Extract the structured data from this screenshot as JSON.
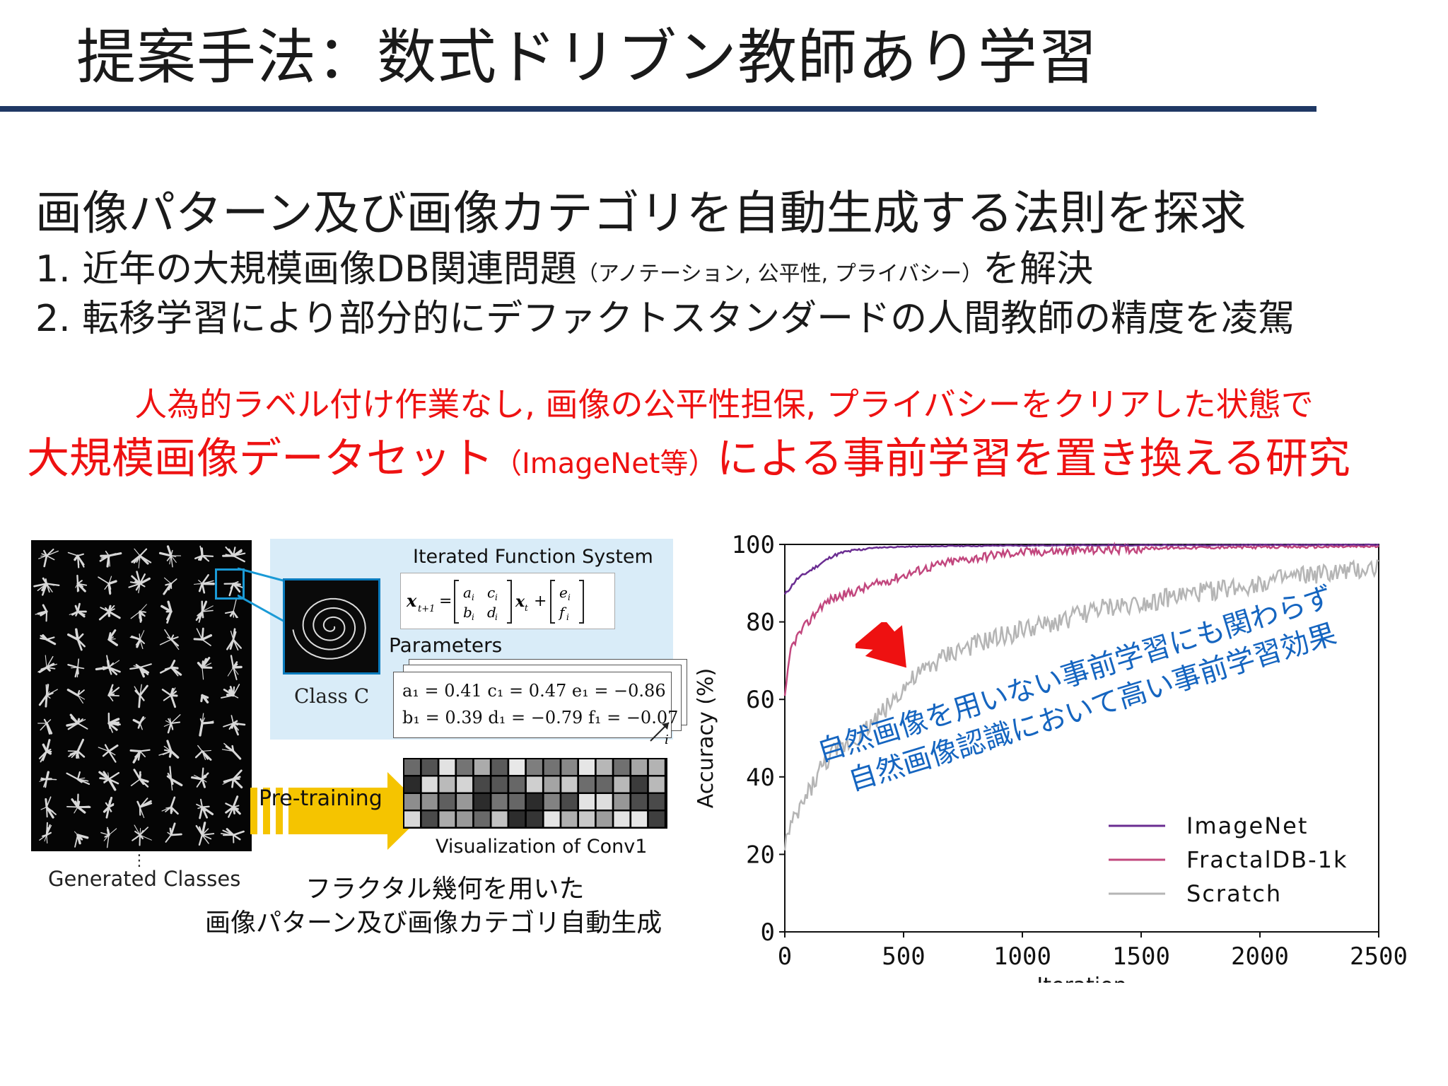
{
  "slide": {
    "title": "提案手法：数式ドリブン教師あり学習",
    "heading": "画像パターン及び画像カテゴリを自動生成する法則を探求",
    "item1_main": "1. 近年の大規模画像DB関連問題",
    "item1_note": "（アノテーション, 公平性, プライバシー）",
    "item1_tail": "を解決",
    "item2": "2. 転移学習により部分的にデファクトスタンダードの人間教師の精度を凌駕",
    "red_line1": "人為的ラベル付け作業なし, 画像の公平性担保, プライバシーをクリアした状態で",
    "red_line2_a": "大規模画像データセット",
    "red_line2_b": "（ImageNet等）",
    "red_line2_c": "による事前学習を置き換える研究"
  },
  "figure": {
    "generated_classes": "Generated Classes",
    "dots": "⋮",
    "ifs_title": "Iterated Function System",
    "class_label": "Class C",
    "parameters_title": "Parameters",
    "param_row1": "a₁ = 0.41  c₁ = 0.47   e₁ = −0.86",
    "param_row2": "b₁ = 0.39  d₁ = −0.79  f₁ = −0.07",
    "index_label": "i",
    "pretraining": "Pre-training",
    "conv_label": "Visualization of Conv1",
    "caption_line1": "フラクタル幾何を用いた",
    "caption_line2": "画像パターン及び画像カテゴリ自動生成",
    "formula_lhs": "x",
    "formula_sub": "t+1"
  },
  "note": {
    "line1": "自然画像を用いない事前学習にも関わらず",
    "line2": "自然画像認識において高い事前学習効果"
  },
  "colors": {
    "title_rule": "#1f3864",
    "red_text": "#ee1111",
    "note_blue": "#1565c0",
    "ifs_bg": "#d9ecf8",
    "imagenet": "#6a2c91",
    "fractaldb": "#c2477e",
    "scratch": "#b5b5b5"
  },
  "chart_data": {
    "type": "line",
    "xlabel": "Iteration",
    "ylabel": "Accuracy (%)",
    "xlim": [
      0,
      2500
    ],
    "ylim": [
      0,
      100
    ],
    "xticks": [
      0,
      500,
      1000,
      1500,
      2000,
      2500
    ],
    "yticks": [
      0,
      20,
      40,
      60,
      80,
      100
    ],
    "grid": false,
    "legend": "bottom-right",
    "series": [
      {
        "name": "ImageNet",
        "color": "#6a2c91",
        "x": [
          0,
          50,
          100,
          150,
          200,
          250,
          300,
          350,
          400,
          500,
          600,
          700,
          800,
          900,
          1000,
          1250,
          1500,
          1750,
          2000,
          2250,
          2500
        ],
        "values": [
          87,
          91,
          93,
          95,
          97,
          98,
          98.5,
          99,
          99.2,
          99.4,
          99.5,
          99.6,
          99.6,
          99.7,
          99.7,
          99.8,
          99.8,
          99.8,
          99.9,
          99.9,
          99.9
        ]
      },
      {
        "name": "FractalDB-1k",
        "color": "#c2477e",
        "x": [
          0,
          25,
          50,
          100,
          150,
          200,
          300,
          400,
          500,
          600,
          700,
          800,
          900,
          1000,
          1250,
          1500,
          1750,
          2000,
          2250,
          2500
        ],
        "values": [
          60,
          73,
          76,
          80,
          84,
          86,
          88,
          90,
          92,
          94,
          95.5,
          96.5,
          97.5,
          98,
          98.5,
          99,
          99.2,
          99.3,
          99.4,
          99.5
        ]
      },
      {
        "name": "Scratch",
        "color": "#b5b5b5",
        "x": [
          0,
          50,
          100,
          150,
          200,
          300,
          400,
          500,
          600,
          700,
          800,
          900,
          1000,
          1100,
          1200,
          1300,
          1400,
          1500,
          1600,
          1700,
          1800,
          1900,
          2000,
          2100,
          2200,
          2300,
          2400,
          2500
        ],
        "values": [
          23,
          30,
          36,
          42,
          46,
          50,
          56,
          63,
          68,
          72,
          74,
          76,
          78,
          79,
          81,
          83,
          84,
          85,
          86,
          87,
          88,
          89,
          90,
          91,
          92,
          92.5,
          93,
          94
        ]
      }
    ]
  }
}
